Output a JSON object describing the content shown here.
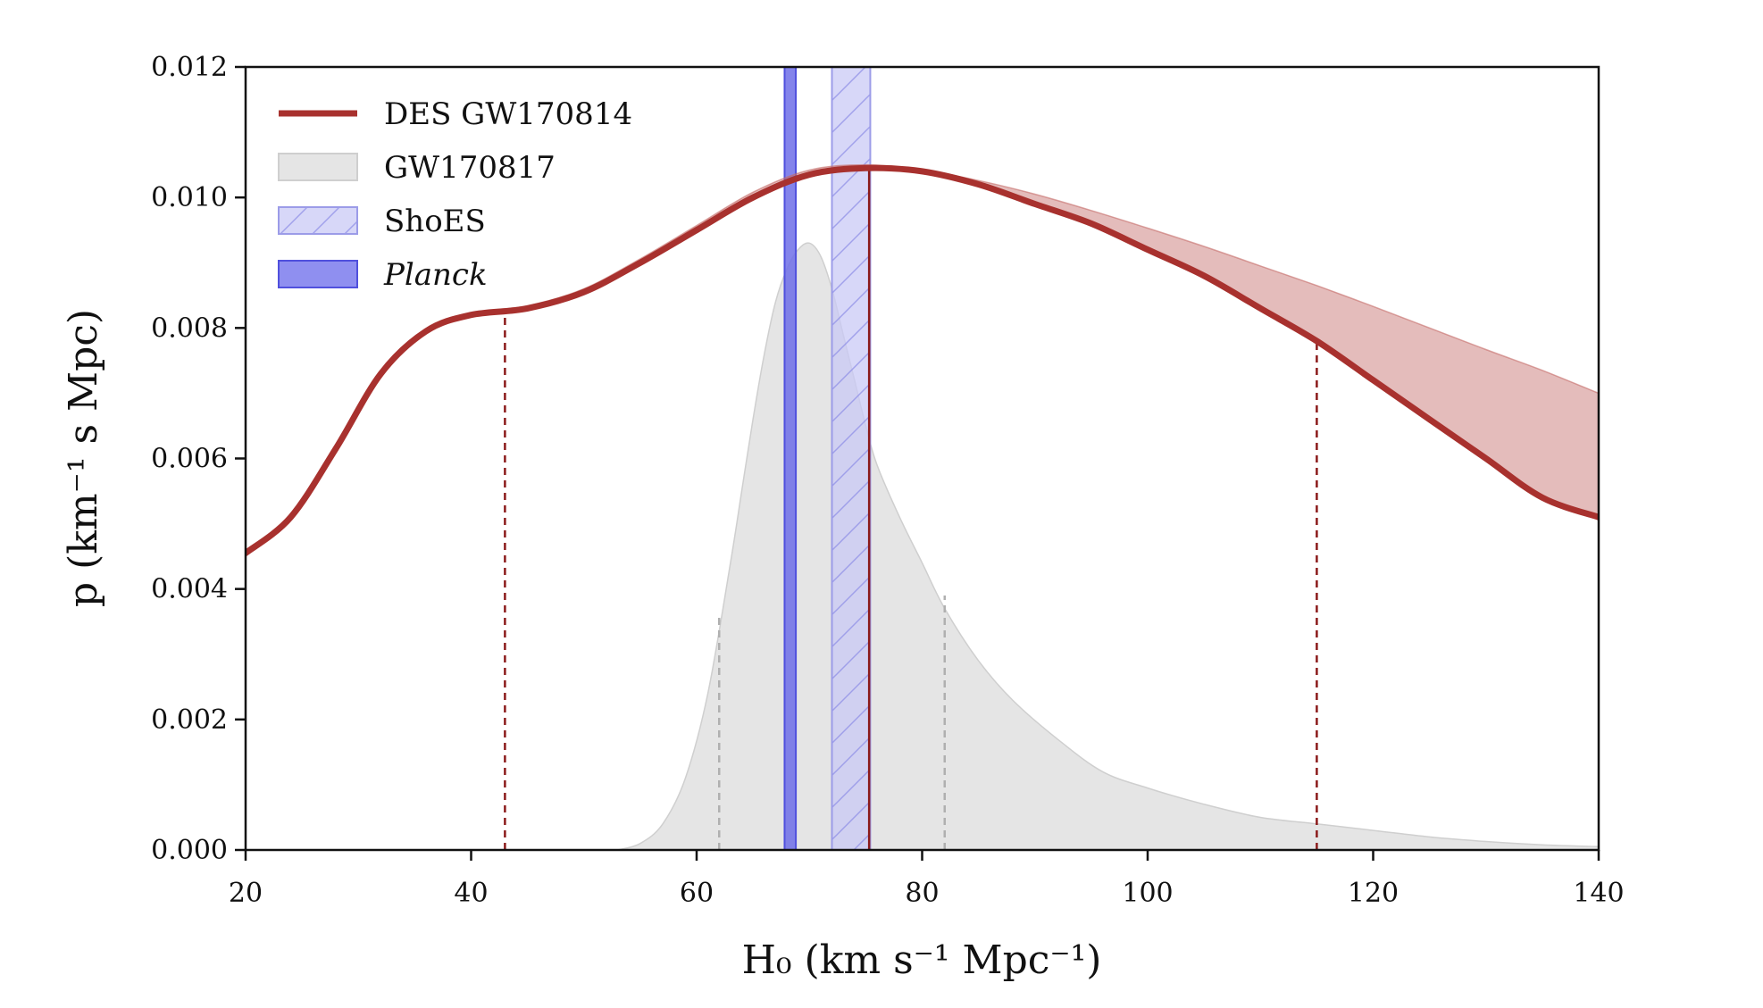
{
  "chart_data": {
    "type": "area",
    "xlabel": "H₀ (km s⁻¹ Mpc⁻¹)",
    "ylabel": "p (km⁻¹ s Mpc)",
    "xlim": [
      20,
      140
    ],
    "ylim": [
      0,
      0.012
    ],
    "x_ticks": [
      20,
      40,
      60,
      80,
      100,
      120,
      140
    ],
    "x_tick_labels": [
      "20",
      "40",
      "60",
      "80",
      "100",
      "120",
      "140"
    ],
    "y_ticks": [
      0,
      0.002,
      0.004,
      0.006,
      0.008,
      0.01,
      0.012
    ],
    "y_tick_labels": [
      "0.000",
      "0.002",
      "0.004",
      "0.006",
      "0.008",
      "0.010",
      "0.012"
    ],
    "grid": false,
    "legend_position": "top-left",
    "legend": [
      {
        "label": "DES GW170814",
        "kind": "line",
        "color": "#a8312e"
      },
      {
        "label": "GW170817",
        "kind": "fill",
        "color": "#e5e5e5"
      },
      {
        "label": "ShoES",
        "kind": "hatched",
        "color": "#c9c9f5"
      },
      {
        "label": "Planck",
        "kind": "fill",
        "color": "#8f8ff0",
        "italic": true
      }
    ],
    "series": [
      {
        "name": "DES GW170814",
        "color": "#a8312e",
        "x": [
          20,
          24,
          28,
          32,
          36,
          40,
          45,
          50,
          55,
          60,
          65,
          70,
          75,
          80,
          85,
          90,
          95,
          100,
          105,
          110,
          115,
          120,
          125,
          130,
          135,
          140
        ],
        "y": [
          0.00455,
          0.0051,
          0.00615,
          0.0073,
          0.00795,
          0.0082,
          0.0083,
          0.00855,
          0.009,
          0.0095,
          0.01,
          0.01035,
          0.01045,
          0.0104,
          0.0102,
          0.0099,
          0.0096,
          0.0092,
          0.0088,
          0.0083,
          0.0078,
          0.0072,
          0.0066,
          0.006,
          0.0054,
          0.0051
        ],
        "upper": [
          0.00455,
          0.00512,
          0.00617,
          0.00733,
          0.00798,
          0.00823,
          0.00834,
          0.0086,
          0.00906,
          0.00957,
          0.01008,
          0.01042,
          0.0105,
          0.01042,
          0.01026,
          0.01005,
          0.0098,
          0.00953,
          0.00925,
          0.00895,
          0.00865,
          0.00833,
          0.008,
          0.00767,
          0.00735,
          0.007
        ]
      },
      {
        "name": "GW170817",
        "color": "#e5e5e5",
        "x": [
          53,
          55,
          57,
          59,
          61,
          63,
          64,
          65,
          66,
          67,
          68,
          69,
          70,
          71,
          72,
          73,
          74,
          75,
          76,
          78,
          80,
          82,
          85,
          88,
          92,
          96,
          100,
          105,
          110,
          115,
          120,
          125,
          130,
          135,
          140
        ],
        "y": [
          0.0,
          0.0001,
          0.0004,
          0.0011,
          0.0024,
          0.0044,
          0.0055,
          0.0066,
          0.0076,
          0.0084,
          0.0089,
          0.0092,
          0.0093,
          0.0091,
          0.0086,
          0.0079,
          0.0072,
          0.0065,
          0.0059,
          0.0051,
          0.0044,
          0.0037,
          0.0029,
          0.0023,
          0.0017,
          0.0012,
          0.00095,
          0.0007,
          0.0005,
          0.0004,
          0.0003,
          0.0002,
          0.00013,
          8e-05,
          5e-05
        ]
      }
    ],
    "bands": [
      {
        "name": "Planck",
        "x_range": [
          67.8,
          68.8
        ],
        "color": "#6f6fe8"
      },
      {
        "name": "ShoES",
        "x_range": [
          72.0,
          75.4
        ],
        "color": "#c9c9f5"
      }
    ],
    "vlines": [
      {
        "x": 43,
        "y_top": 0.0082,
        "color": "#8b1a1a",
        "style": "dashed"
      },
      {
        "x": 75.3,
        "y_top": 0.01045,
        "color": "#8b1a1a",
        "style": "solid"
      },
      {
        "x": 115,
        "y_top": 0.0078,
        "color": "#8b1a1a",
        "style": "dashed"
      },
      {
        "x": 62,
        "y_top": 0.0036,
        "color": "#b0b0b0",
        "style": "dashed"
      },
      {
        "x": 82,
        "y_top": 0.0039,
        "color": "#b0b0b0",
        "style": "dashed"
      }
    ]
  }
}
